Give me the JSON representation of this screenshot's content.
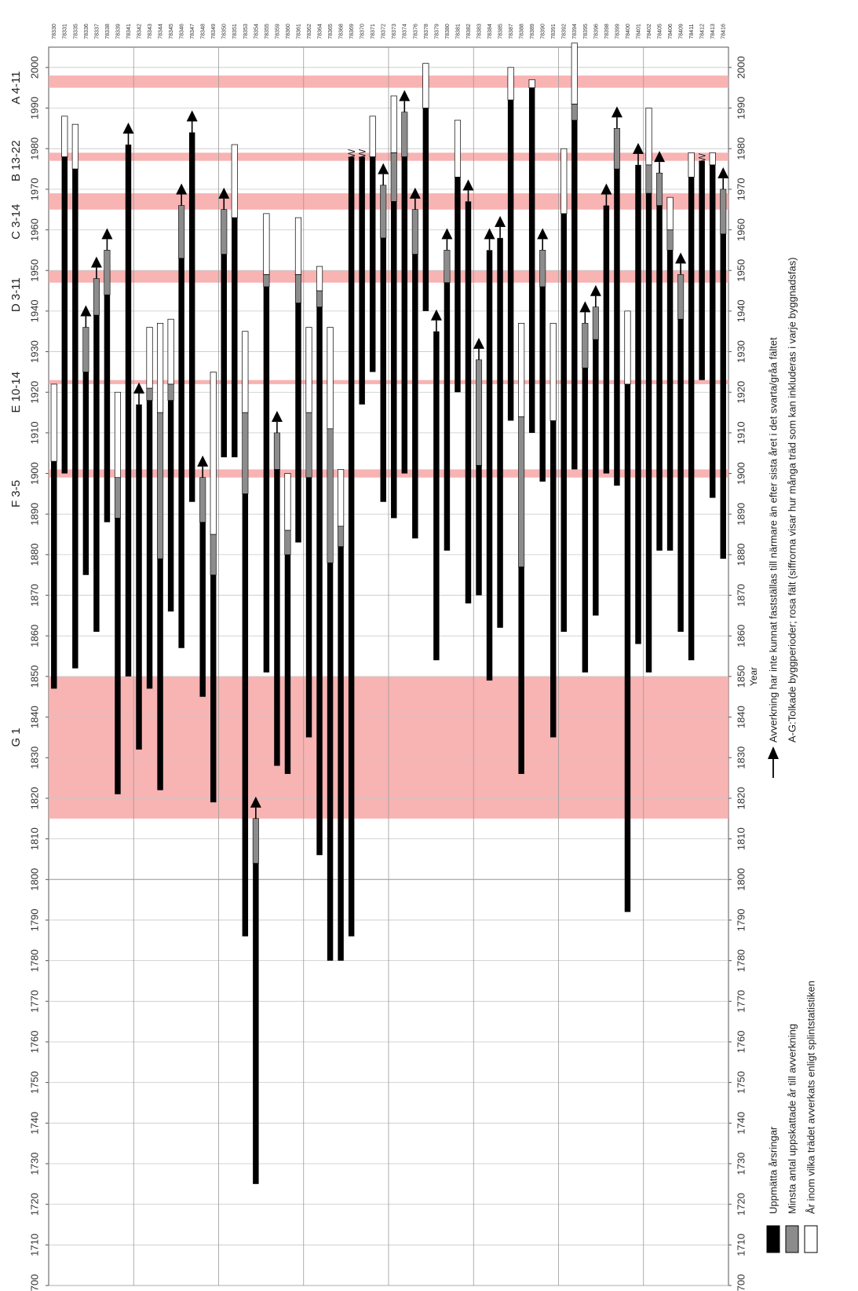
{
  "chart_data": {
    "type": "bar",
    "orientation": "rotated",
    "year_axis": {
      "label": "Year",
      "range": [
        1700,
        2005
      ],
      "ticks": [
        1700,
        1710,
        1720,
        1730,
        1740,
        1750,
        1760,
        1770,
        1780,
        1790,
        1800,
        1810,
        1820,
        1830,
        1840,
        1850,
        1860,
        1870,
        1880,
        1890,
        1900,
        1910,
        1920,
        1930,
        1940,
        1950,
        1960,
        1970,
        1980,
        1990,
        2000
      ]
    },
    "periods": [
      {
        "label": "A 4-11",
        "from": 1995,
        "to": 1998,
        "label_year": 1995
      },
      {
        "label": "B 13-22",
        "from": 1977,
        "to": 1979,
        "label_year": 1977
      },
      {
        "label": "C 3-14",
        "from": 1965,
        "to": 1969,
        "label_year": 1962
      },
      {
        "label": "D 3-11",
        "from": 1947,
        "to": 1950,
        "label_year": 1944
      },
      {
        "label": "E 10-14",
        "from": 1922,
        "to": 1923,
        "label_year": 1920
      },
      {
        "label": "F 3-5",
        "from": 1899,
        "to": 1901,
        "label_year": 1895
      },
      {
        "label": "G 1",
        "from": 1815,
        "to": 1850,
        "label_year": 1835
      }
    ],
    "samples": [
      {
        "id": "78330",
        "black": [
          1847,
          1903
        ],
        "gray": null,
        "white": [
          1903,
          1922
        ],
        "arrow": false,
        "w": false
      },
      {
        "id": "78331",
        "black": [
          1900,
          1978
        ],
        "gray": null,
        "white": [
          1978,
          1988
        ],
        "arrow": false,
        "w": false
      },
      {
        "id": "78335",
        "black": [
          1852,
          1975
        ],
        "gray": null,
        "white": [
          1975,
          1986
        ],
        "arrow": false,
        "w": false
      },
      {
        "id": "78336",
        "black": [
          1875,
          1925
        ],
        "gray": [
          1925,
          1936
        ],
        "white": null,
        "arrow": true,
        "w": false
      },
      {
        "id": "78337",
        "black": [
          1861,
          1939
        ],
        "gray": [
          1939,
          1948
        ],
        "white": null,
        "arrow": true,
        "w": false
      },
      {
        "id": "78338",
        "black": [
          1888,
          1944
        ],
        "gray": [
          1944,
          1955
        ],
        "white": null,
        "arrow": true,
        "w": false
      },
      {
        "id": "78339",
        "black": [
          1821,
          1889
        ],
        "gray": [
          1889,
          1899
        ],
        "white": [
          1899,
          1920
        ],
        "arrow": false,
        "w": false
      },
      {
        "id": "78341",
        "black": [
          1850,
          1981
        ],
        "gray": null,
        "white": null,
        "arrow": true,
        "w": false
      },
      {
        "id": "78342",
        "black": [
          1832,
          1917
        ],
        "gray": null,
        "white": null,
        "arrow": true,
        "w": false
      },
      {
        "id": "78343",
        "black": [
          1847,
          1918
        ],
        "gray": [
          1918,
          1921
        ],
        "white": [
          1921,
          1936
        ],
        "arrow": false,
        "w": false
      },
      {
        "id": "78344",
        "black": [
          1822,
          1879
        ],
        "gray": [
          1879,
          1915
        ],
        "white": [
          1915,
          1937
        ],
        "arrow": false,
        "w": false
      },
      {
        "id": "78345",
        "black": [
          1866,
          1918
        ],
        "gray": [
          1918,
          1922
        ],
        "white": [
          1922,
          1938
        ],
        "arrow": false,
        "w": false
      },
      {
        "id": "78346",
        "black": [
          1857,
          1953
        ],
        "gray": [
          1953,
          1966
        ],
        "white": null,
        "arrow": true,
        "w": false
      },
      {
        "id": "78347",
        "black": [
          1893,
          1984
        ],
        "gray": null,
        "white": null,
        "arrow": true,
        "w": false
      },
      {
        "id": "78348",
        "black": [
          1845,
          1888
        ],
        "gray": [
          1888,
          1899
        ],
        "white": null,
        "arrow": true,
        "w": false
      },
      {
        "id": "78349",
        "black": [
          1819,
          1875
        ],
        "gray": [
          1875,
          1885
        ],
        "white": [
          1885,
          1925
        ],
        "arrow": false,
        "w": false
      },
      {
        "id": "78350",
        "black": [
          1904,
          1954
        ],
        "gray": [
          1954,
          1965
        ],
        "white": null,
        "arrow": true,
        "w": false
      },
      {
        "id": "78351",
        "black": [
          1904,
          1963
        ],
        "gray": null,
        "white": [
          1963,
          1981
        ],
        "arrow": false,
        "w": false
      },
      {
        "id": "78353",
        "black": [
          1786,
          1895
        ],
        "gray": [
          1895,
          1915
        ],
        "white": [
          1915,
          1935
        ],
        "arrow": false,
        "w": false
      },
      {
        "id": "78354",
        "black": [
          1725,
          1804
        ],
        "gray": [
          1804,
          1815
        ],
        "white": null,
        "arrow": true,
        "w": false
      },
      {
        "id": "78355",
        "black": [
          1851,
          1946
        ],
        "gray": [
          1946,
          1949
        ],
        "white": [
          1949,
          1964
        ],
        "arrow": false,
        "w": false
      },
      {
        "id": "78359",
        "black": [
          1828,
          1901
        ],
        "gray": [
          1901,
          1910
        ],
        "white": null,
        "arrow": true,
        "w": false
      },
      {
        "id": "78360",
        "black": [
          1826,
          1880
        ],
        "gray": [
          1880,
          1886
        ],
        "white": [
          1886,
          1900
        ],
        "arrow": false,
        "w": false
      },
      {
        "id": "78361",
        "black": [
          1883,
          1942
        ],
        "gray": [
          1942,
          1949
        ],
        "white": [
          1949,
          1963
        ],
        "arrow": false,
        "w": false
      },
      {
        "id": "78362",
        "black": [
          1835,
          1899
        ],
        "gray": [
          1899,
          1915
        ],
        "white": [
          1915,
          1936
        ],
        "arrow": false,
        "w": false
      },
      {
        "id": "78364",
        "black": [
          1806,
          1941
        ],
        "gray": [
          1941,
          1945
        ],
        "white": [
          1945,
          1951
        ],
        "arrow": false,
        "w": false
      },
      {
        "id": "78365",
        "black": [
          1780,
          1878
        ],
        "gray": [
          1878,
          1911
        ],
        "white": [
          1911,
          1936
        ],
        "arrow": false,
        "w": false
      },
      {
        "id": "78368",
        "black": [
          1780,
          1882
        ],
        "gray": [
          1882,
          1887
        ],
        "white": [
          1887,
          1901
        ],
        "arrow": false,
        "w": false
      },
      {
        "id": "78369",
        "black": [
          1786,
          1978
        ],
        "gray": null,
        "white": null,
        "arrow": false,
        "w": true
      },
      {
        "id": "78370",
        "black": [
          1917,
          1978
        ],
        "gray": null,
        "white": null,
        "arrow": false,
        "w": true
      },
      {
        "id": "78371",
        "black": [
          1925,
          1978
        ],
        "gray": null,
        "white": [
          1978,
          1988
        ],
        "arrow": false,
        "w": false
      },
      {
        "id": "78372",
        "black": [
          1893,
          1958
        ],
        "gray": [
          1958,
          1971
        ],
        "white": null,
        "arrow": true,
        "w": false
      },
      {
        "id": "78373",
        "black": [
          1889,
          1967
        ],
        "gray": [
          1967,
          1979
        ],
        "white": [
          1979,
          1993
        ],
        "arrow": false,
        "w": false
      },
      {
        "id": "78374",
        "black": [
          1900,
          1978
        ],
        "gray": [
          1978,
          1989
        ],
        "white": null,
        "arrow": true,
        "w": false
      },
      {
        "id": "78376",
        "black": [
          1884,
          1954
        ],
        "gray": [
          1954,
          1965
        ],
        "white": null,
        "arrow": true,
        "w": false
      },
      {
        "id": "78378",
        "black": [
          1940,
          1990
        ],
        "gray": null,
        "white": [
          1990,
          2001
        ],
        "arrow": false,
        "w": false
      },
      {
        "id": "78379",
        "black": [
          1854,
          1935
        ],
        "gray": null,
        "white": null,
        "arrow": true,
        "w": false
      },
      {
        "id": "78380",
        "black": [
          1881,
          1947
        ],
        "gray": [
          1947,
          1955
        ],
        "white": null,
        "arrow": true,
        "w": false
      },
      {
        "id": "78381",
        "black": [
          1920,
          1973
        ],
        "gray": null,
        "white": [
          1973,
          1987
        ],
        "arrow": false,
        "w": false
      },
      {
        "id": "78382",
        "black": [
          1868,
          1967
        ],
        "gray": null,
        "white": null,
        "arrow": true,
        "w": false
      },
      {
        "id": "78383",
        "black": [
          1870,
          1902
        ],
        "gray": [
          1902,
          1928
        ],
        "white": null,
        "arrow": true,
        "w": false
      },
      {
        "id": "78384",
        "black": [
          1849,
          1955
        ],
        "gray": null,
        "white": null,
        "arrow": true,
        "w": false
      },
      {
        "id": "78385",
        "black": [
          1862,
          1958
        ],
        "gray": null,
        "white": null,
        "arrow": true,
        "w": false
      },
      {
        "id": "78387",
        "black": [
          1913,
          1992
        ],
        "gray": null,
        "white": [
          1992,
          2000
        ],
        "arrow": false,
        "w": false
      },
      {
        "id": "78388",
        "black": [
          1826,
          1877
        ],
        "gray": [
          1877,
          1914
        ],
        "white": [
          1914,
          1937
        ],
        "arrow": false,
        "w": false
      },
      {
        "id": "78389",
        "black": [
          1910,
          1995
        ],
        "gray": null,
        "white": [
          1995,
          1997
        ],
        "arrow": false,
        "w": false
      },
      {
        "id": "78390",
        "black": [
          1898,
          1946
        ],
        "gray": [
          1946,
          1955
        ],
        "white": null,
        "arrow": true,
        "w": false
      },
      {
        "id": "78391",
        "black": [
          1835,
          1913
        ],
        "gray": null,
        "white": [
          1913,
          1937
        ],
        "arrow": false,
        "w": false
      },
      {
        "id": "78392",
        "black": [
          1861,
          1964
        ],
        "gray": null,
        "white": [
          1964,
          1980
        ],
        "arrow": false,
        "w": false
      },
      {
        "id": "78394",
        "black": [
          1901,
          1987
        ],
        "gray": [
          1987,
          1991
        ],
        "white": [
          1991,
          2006
        ],
        "arrow": false,
        "w": false
      },
      {
        "id": "78395",
        "black": [
          1851,
          1926
        ],
        "gray": [
          1926,
          1937
        ],
        "white": null,
        "arrow": true,
        "w": false
      },
      {
        "id": "78396",
        "black": [
          1865,
          1933
        ],
        "gray": [
          1933,
          1941
        ],
        "white": null,
        "arrow": true,
        "w": false
      },
      {
        "id": "78398",
        "black": [
          1900,
          1966
        ],
        "gray": null,
        "white": null,
        "arrow": true,
        "w": false
      },
      {
        "id": "78399",
        "black": [
          1897,
          1975
        ],
        "gray": [
          1975,
          1985
        ],
        "white": null,
        "arrow": true,
        "w": false
      },
      {
        "id": "78400",
        "black": [
          1792,
          1922
        ],
        "gray": null,
        "white": [
          1922,
          1940
        ],
        "arrow": false,
        "w": false
      },
      {
        "id": "78401",
        "black": [
          1858,
          1976
        ],
        "gray": null,
        "white": null,
        "arrow": true,
        "w": false
      },
      {
        "id": "78402",
        "black": [
          1851,
          1969
        ],
        "gray": [
          1969,
          1976
        ],
        "white": [
          1976,
          1990
        ],
        "arrow": false,
        "w": false
      },
      {
        "id": "78405",
        "black": [
          1881,
          1966
        ],
        "gray": [
          1966,
          1974
        ],
        "white": null,
        "arrow": true,
        "w": false
      },
      {
        "id": "78406",
        "black": [
          1881,
          1955
        ],
        "gray": [
          1955,
          1960
        ],
        "white": [
          1960,
          1968
        ],
        "arrow": false,
        "w": false
      },
      {
        "id": "78409",
        "black": [
          1861,
          1938
        ],
        "gray": [
          1938,
          1949
        ],
        "white": null,
        "arrow": true,
        "w": false
      },
      {
        "id": "78411",
        "black": [
          1854,
          1973
        ],
        "gray": null,
        "white": [
          1973,
          1979
        ],
        "arrow": false,
        "w": false
      },
      {
        "id": "78412",
        "black": [
          1923,
          1977
        ],
        "gray": null,
        "white": null,
        "arrow": false,
        "w": true
      },
      {
        "id": "78413",
        "black": [
          1894,
          1976
        ],
        "gray": null,
        "white": [
          1976,
          1979
        ],
        "arrow": false,
        "w": false
      },
      {
        "id": "78416",
        "black": [
          1879,
          1959
        ],
        "gray": [
          1959,
          1970
        ],
        "white": null,
        "arrow": true,
        "w": false
      }
    ],
    "legend": [
      {
        "swatch": "black",
        "label": "Uppmätta årsringar"
      },
      {
        "swatch": "gray",
        "label": "Minsta antal uppskattade år till avverkning"
      },
      {
        "swatch": "white",
        "label": "År inom vilka trädet avverkats enligt splintstatistiken"
      }
    ],
    "notes": [
      "Avverkning har inte kunnat fastställas till närmare än efter sista året i det svarta/gråa fältet",
      "A-G:Tolkade byggperioder; rosa fält (siffrorna visar hur många träd som kan inkluderas i varje byggnadsfas)"
    ],
    "w_marker": "W",
    "colors": {
      "black": "#000000",
      "gray": "#8c8c8c",
      "white": "#ffffff",
      "period": "#f7a6a6",
      "grid": "#9a9a9a"
    }
  }
}
